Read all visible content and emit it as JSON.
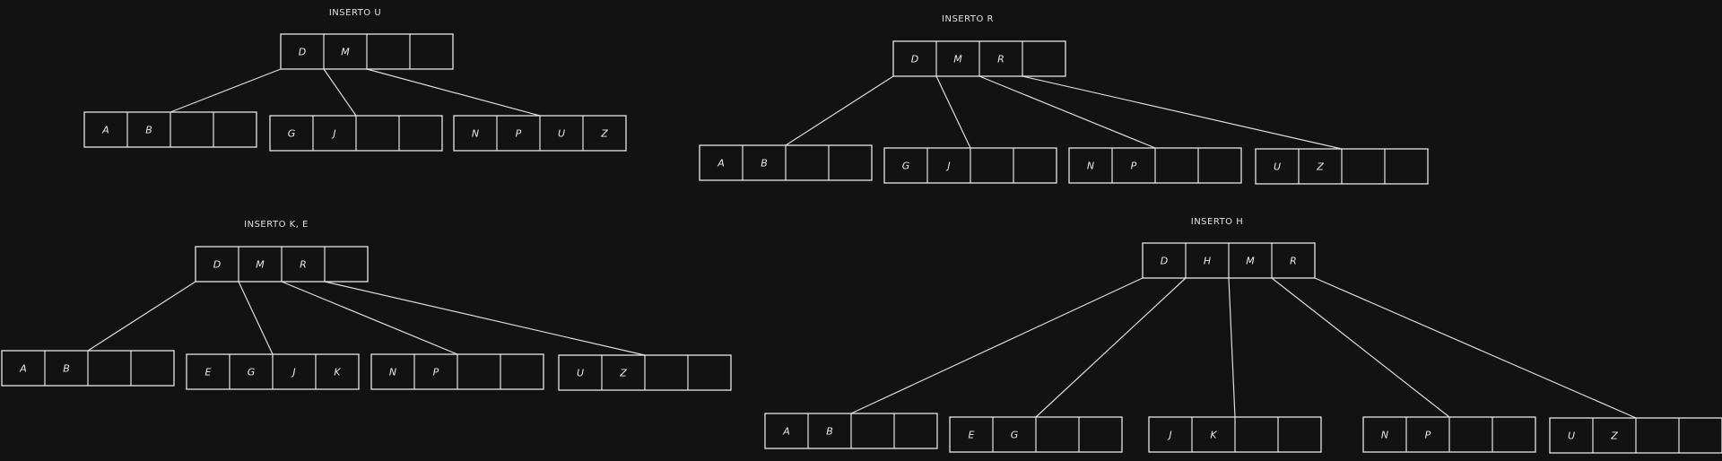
{
  "trees": [
    {
      "title": "INSERTO U",
      "root": [
        "D",
        "M",
        "",
        ""
      ],
      "children": [
        [
          "A",
          "B",
          "",
          ""
        ],
        [
          "G",
          "J",
          "",
          ""
        ],
        [
          "N",
          "P",
          "U",
          "Z"
        ]
      ]
    },
    {
      "title": "INSERTO R",
      "root": [
        "D",
        "M",
        "R",
        ""
      ],
      "children": [
        [
          "A",
          "B",
          "",
          ""
        ],
        [
          "G",
          "J",
          "",
          ""
        ],
        [
          "N",
          "P",
          "",
          ""
        ],
        [
          "U",
          "Z",
          "",
          ""
        ]
      ]
    },
    {
      "title": "INSERTO K, E",
      "root": [
        "D",
        "M",
        "R",
        ""
      ],
      "children": [
        [
          "A",
          "B",
          "",
          ""
        ],
        [
          "E",
          "G",
          "J",
          "K"
        ],
        [
          "N",
          "P",
          "",
          ""
        ],
        [
          "U",
          "Z",
          "",
          ""
        ]
      ]
    },
    {
      "title": "INSERTO H",
      "root": [
        "D",
        "H",
        "M",
        "R"
      ],
      "children": [
        [
          "A",
          "B",
          "",
          ""
        ],
        [
          "E",
          "G",
          "",
          ""
        ],
        [
          "J",
          "K",
          "",
          ""
        ],
        [
          "N",
          "P",
          "",
          ""
        ],
        [
          "U",
          "Z",
          "",
          ""
        ]
      ]
    }
  ]
}
